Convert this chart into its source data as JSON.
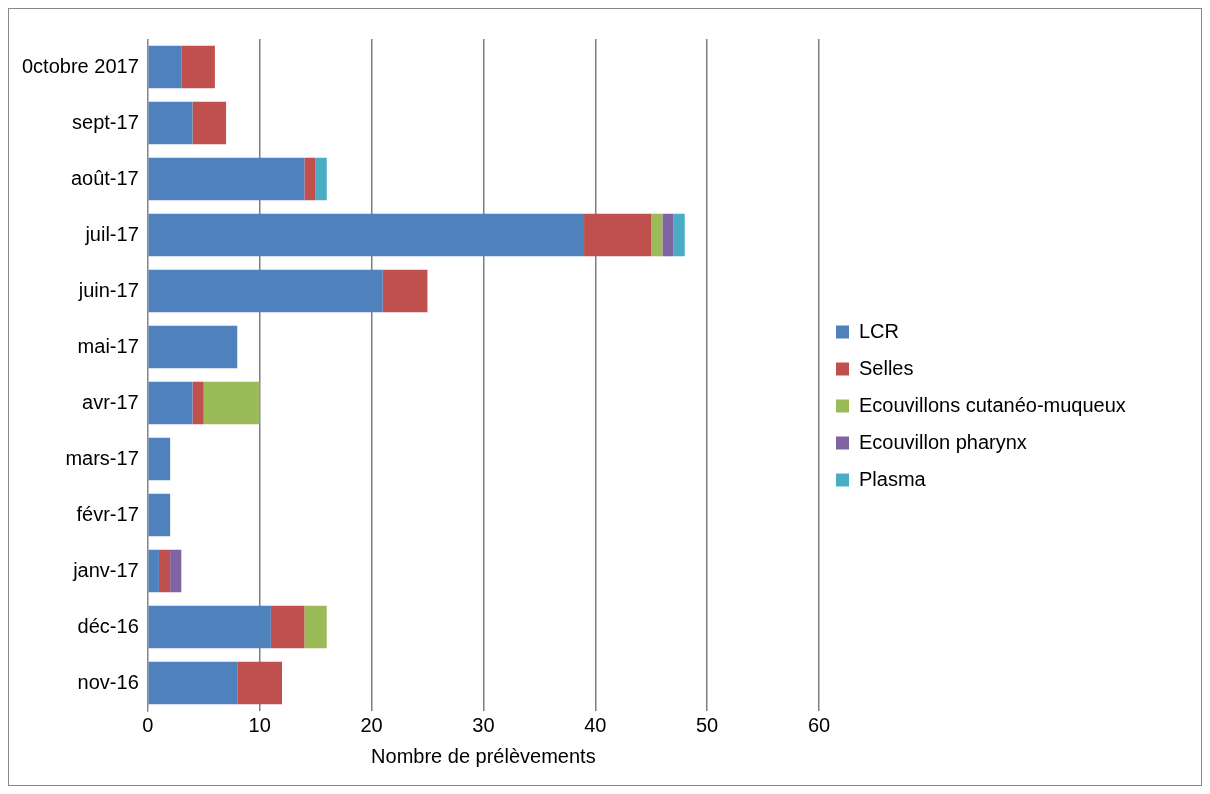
{
  "chart_data": {
    "type": "bar",
    "orientation": "horizontal",
    "stacked": true,
    "xlabel": "Nombre de prélèvements",
    "categories": [
      "0ctobre 2017",
      "sept-17",
      "août-17",
      "juil-17",
      "juin-17",
      "mai-17",
      "avr-17",
      "mars-17",
      "févr-17",
      "janv-17",
      "déc-16",
      "nov-16"
    ],
    "series": [
      {
        "name": "LCR",
        "color": "#4f81bd",
        "values": [
          3,
          4,
          14,
          39,
          21,
          8,
          4,
          2,
          2,
          1,
          11,
          8
        ]
      },
      {
        "name": "Selles",
        "color": "#c0504d",
        "values": [
          3,
          3,
          1,
          6,
          4,
          0,
          1,
          0,
          0,
          1,
          3,
          4
        ]
      },
      {
        "name": "Ecouvillons cutanéo-muqueux",
        "color": "#9bbb59",
        "values": [
          0,
          0,
          0,
          1,
          0,
          0,
          5,
          0,
          0,
          0,
          2,
          0
        ]
      },
      {
        "name": "Ecouvillon pharynx",
        "color": "#8064a2",
        "values": [
          0,
          0,
          0,
          1,
          0,
          0,
          0,
          0,
          0,
          1,
          0,
          0
        ]
      },
      {
        "name": "Plasma",
        "color": "#4bacc6",
        "values": [
          0,
          0,
          1,
          1,
          0,
          0,
          0,
          0,
          0,
          0,
          0,
          0
        ]
      }
    ],
    "xlim": [
      0,
      60
    ],
    "xticks": [
      0,
      10,
      20,
      30,
      40,
      50,
      60
    ],
    "grid": "x",
    "legend": "right"
  }
}
